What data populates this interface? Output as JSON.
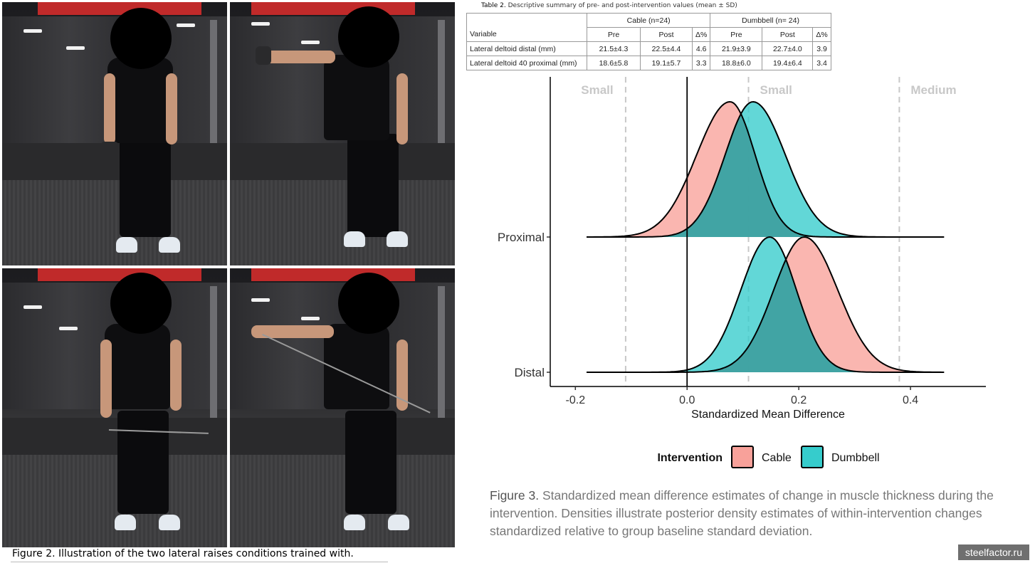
{
  "figure2": {
    "label": "Figure 2.",
    "text": "Illustration of the two lateral raises conditions trained with."
  },
  "table2": {
    "label": "Table 2.",
    "caption": "Descriptive summary of pre- and post-intervention values (mean ± SD)",
    "groups": [
      "Cable (n=24)",
      "Dumbbell (n= 24)"
    ],
    "headers": [
      "Variable",
      "Pre",
      "Post",
      "Δ%",
      "Pre",
      "Post",
      "Δ%"
    ],
    "rows": [
      [
        "Lateral deltoid distal (mm)",
        "21.5±4.3",
        "22.5±4.4",
        "4.6",
        "21.9±3.9",
        "22.7±4.0",
        "3.9"
      ],
      [
        "Lateral deltoid 40 proximal (mm)",
        "18.6±5.8",
        "19.1±5.7",
        "3.3",
        "18.8±6.0",
        "19.4±6.4",
        "3.4"
      ]
    ]
  },
  "chart_data": {
    "type": "area",
    "subtype": "ridgeline density",
    "xlabel": "Standardized Mean Difference",
    "xlim": [
      -0.245,
      0.535
    ],
    "x_ticks": [
      -0.2,
      0.0,
      0.2,
      0.4
    ],
    "x_tick_labels": [
      "-0.2",
      "0.0",
      "0.2",
      "0.4"
    ],
    "rows": [
      "Proximal",
      "Distal"
    ],
    "reference_lines": [
      {
        "x": -0.11,
        "label": "Small"
      },
      {
        "x": 0.11,
        "label": "Small"
      },
      {
        "x": 0.38,
        "label": "Medium"
      }
    ],
    "zero_line": 0.0,
    "series": [
      {
        "name": "Cable",
        "color": "#F8A19A",
        "densities": {
          "Proximal": {
            "mode": 0.077,
            "sd_left": 0.06,
            "sd_right": 0.045,
            "range": [
              -0.18,
              0.46
            ]
          },
          "Distal": {
            "mode": 0.21,
            "sd_left": 0.055,
            "sd_right": 0.06,
            "range": [
              -0.18,
              0.46
            ]
          }
        }
      },
      {
        "name": "Dumbbell",
        "color": "#36CCCC",
        "densities": {
          "Proximal": {
            "mode": 0.118,
            "sd_left": 0.05,
            "sd_right": 0.058,
            "range": [
              -0.18,
              0.46
            ]
          },
          "Distal": {
            "mode": 0.148,
            "sd_left": 0.052,
            "sd_right": 0.048,
            "range": [
              -0.18,
              0.46
            ]
          }
        }
      }
    ],
    "legend": {
      "title": "Intervention",
      "position": "bottom",
      "entries": [
        "Cable",
        "Dumbbell"
      ]
    },
    "grid": false
  },
  "figure3": {
    "label": "Figure 3.",
    "text": "Standardized mean difference estimates of change in muscle thickness during the intervention. Densities illustrate posterior density estimates of within-intervention changes standardized relative to group baseline standard deviation."
  },
  "watermark": "steelfactor.ru",
  "colors": {
    "cable": "#F8A19A",
    "dumbbell": "#36CCCC",
    "overlap": "#3C9E9E",
    "refline": "#c8c8c8"
  },
  "photos": [
    {
      "id": "dumbbell-start",
      "icon": "person-dumbbell-down"
    },
    {
      "id": "dumbbell-top",
      "icon": "person-dumbbell-raised"
    },
    {
      "id": "cable-start",
      "icon": "person-cable-down"
    },
    {
      "id": "cable-top",
      "icon": "person-cable-raised"
    }
  ]
}
